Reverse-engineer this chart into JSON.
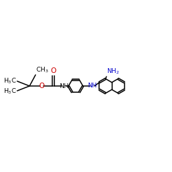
{
  "bg_color": "#ffffff",
  "bond_color": "#000000",
  "nh_color": "#0000cc",
  "o_color": "#cc0000",
  "font_size": 6.5,
  "figsize": [
    2.5,
    2.5
  ],
  "dpi": 100,
  "xlim": [
    0,
    10
  ],
  "ylim": [
    3.5,
    7.5
  ]
}
